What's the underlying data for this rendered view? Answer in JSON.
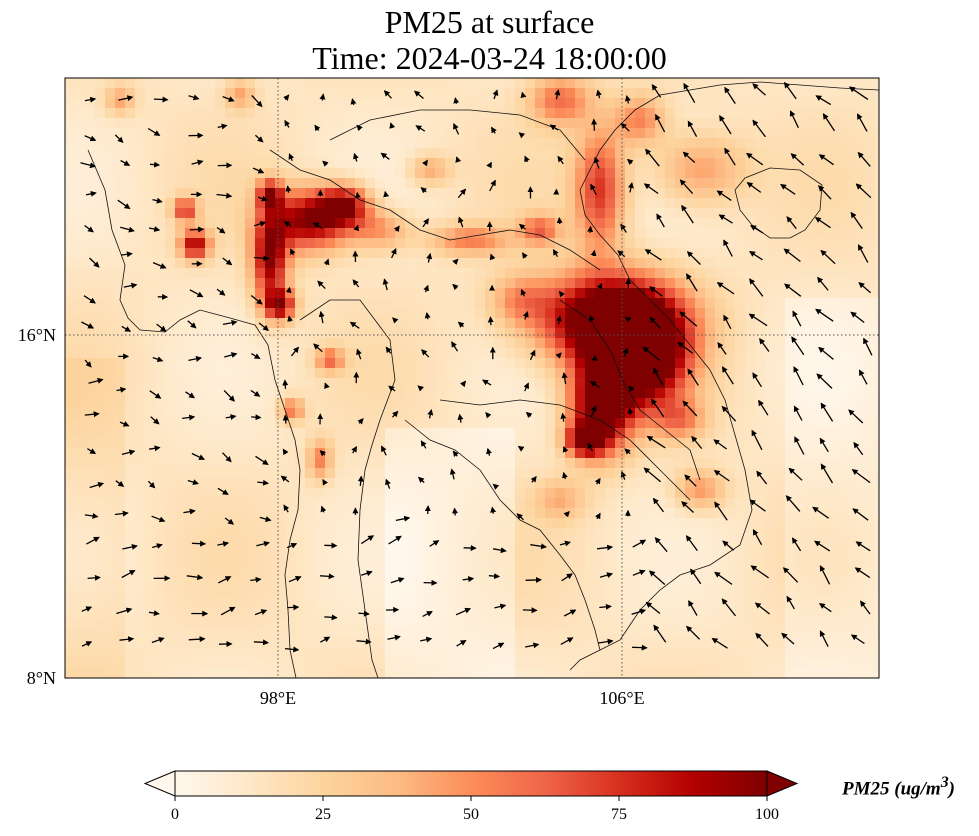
{
  "title_line1": "PM25 at surface",
  "title_line2": "Time: 2024-03-24 18:00:00",
  "map": {
    "type": "heatmap",
    "variable": "PM25",
    "x_ticks": [
      {
        "label": "98°E",
        "lon": 98
      },
      {
        "label": "106°E",
        "lon": 106
      }
    ],
    "y_ticks": [
      {
        "label": "16°N",
        "lat": 16
      },
      {
        "label": "8°N",
        "lat": 8
      }
    ],
    "gridlines": "dotted",
    "wind_vectors": true,
    "coastlines": true,
    "colormap": "OrRd"
  },
  "colorbar": {
    "label": "PM25 (ug/m",
    "label_superscript": "3",
    "label_close": ")",
    "ticks": [
      "0",
      "25",
      "50",
      "75",
      "100"
    ],
    "min": 0,
    "max": 100,
    "extend": "both",
    "colors": [
      "#fff7ec",
      "#fee8c8",
      "#fdd49e",
      "#fdbb84",
      "#fc8d59",
      "#ef6548",
      "#d7301f",
      "#b30000",
      "#7f0000"
    ]
  }
}
